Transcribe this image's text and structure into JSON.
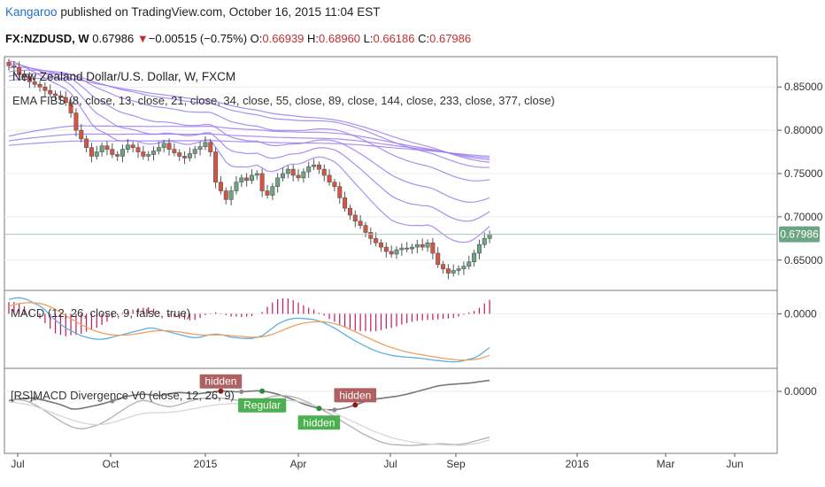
{
  "header": {
    "author": "Kangaroo",
    "published_text": "published on TradingView.com, October 16, 2015 11:04 EST",
    "symbol_label": "FX:NZDUSD, W",
    "last": "0.67986",
    "arrow": "▼",
    "change": "−0.00515 (−0.75%)",
    "open_label": "O:",
    "open": "0.66939",
    "high_label": "H:",
    "high": "0.68960",
    "low_label": "L:",
    "low": "0.66186",
    "close_label": "C:",
    "close": "0.67986"
  },
  "colors": {
    "up": "#6ba583",
    "down": "#d75442",
    "ema": "#9b7ded",
    "macd": "#5bb0e6",
    "signal": "#f0a060",
    "hist_pos": "#c2185b",
    "last_price_bg": "#6ba583",
    "div_label_bg": "#b06060",
    "div_label_bg2": "#4caf50",
    "grid": "#e8ecf0"
  },
  "chart_data": [
    {
      "type": "candlestick",
      "title": "New Zealand Dollar/U.S. Dollar, W, FXCM",
      "indicator_label": "EMA FIBS (8, close, 13, close, 21, close, 34, close, 55, close, 89, close, 144, close, 233, close, 377, close)",
      "x_tick_labels": [
        "Jul",
        "Oct",
        "2015",
        "Apr",
        "Jul",
        "Sep",
        "2016",
        "Mar",
        "Jun"
      ],
      "y_tick_labels": [
        "0.85000",
        "0.80000",
        "0.75000",
        "0.70000",
        "0.65000"
      ],
      "ylim": [
        0.615,
        0.885
      ],
      "last_price_label": "0.67986",
      "last_price": 0.67986,
      "closes": [
        0.8745,
        0.8725,
        0.865,
        0.862,
        0.856,
        0.853,
        0.85,
        0.846,
        0.842,
        0.84,
        0.838,
        0.832,
        0.82,
        0.8,
        0.79,
        0.78,
        0.77,
        0.775,
        0.782,
        0.778,
        0.772,
        0.77,
        0.778,
        0.783,
        0.78,
        0.775,
        0.77,
        0.772,
        0.776,
        0.78,
        0.785,
        0.778,
        0.774,
        0.77,
        0.768,
        0.773,
        0.778,
        0.781,
        0.786,
        0.775,
        0.74,
        0.73,
        0.72,
        0.73,
        0.74,
        0.745,
        0.742,
        0.748,
        0.75,
        0.73,
        0.725,
        0.735,
        0.745,
        0.75,
        0.755,
        0.748,
        0.745,
        0.752,
        0.758,
        0.76,
        0.755,
        0.748,
        0.74,
        0.735,
        0.722,
        0.71,
        0.702,
        0.695,
        0.69,
        0.682,
        0.675,
        0.67,
        0.665,
        0.66,
        0.657,
        0.662,
        0.664,
        0.663,
        0.665,
        0.668,
        0.665,
        0.67,
        0.658,
        0.645,
        0.64,
        0.635,
        0.638,
        0.64,
        0.643,
        0.648,
        0.658,
        0.668,
        0.675,
        0.68
      ],
      "ema_lengths": [
        8,
        13,
        21,
        34,
        55,
        89,
        144,
        233,
        377
      ],
      "ema_end_values": [
        0.689,
        0.706,
        0.722,
        0.743,
        0.757,
        0.763,
        0.766,
        0.768,
        0.77
      ]
    },
    {
      "type": "line",
      "title": "MACD (12, 26, close, 9, false, true)",
      "y_tick_labels": [
        "0.0000"
      ],
      "series": [
        {
          "name": "MACD",
          "role": "macd",
          "values": [
            0.0055,
            0.006,
            0.0062,
            0.0058,
            0.005,
            0.004,
            0.003,
            0.0015,
            -0.0005,
            -0.0025,
            -0.004,
            -0.0055,
            -0.0065,
            -0.0075,
            -0.0085,
            -0.009,
            -0.0095,
            -0.0098,
            -0.0098,
            -0.0095,
            -0.009,
            -0.0085,
            -0.008,
            -0.0075,
            -0.007,
            -0.0065,
            -0.006,
            -0.0055,
            -0.0055,
            -0.006,
            -0.0065,
            -0.007,
            -0.0075,
            -0.008,
            -0.0085,
            -0.009,
            -0.0092,
            -0.009,
            -0.0085,
            -0.008,
            -0.0078,
            -0.008,
            -0.0085,
            -0.009,
            -0.0092,
            -0.0094,
            -0.0095,
            -0.0095,
            -0.009,
            -0.0085,
            -0.007,
            -0.0055,
            -0.004,
            -0.003,
            -0.0022,
            -0.0018,
            -0.0017,
            -0.0018,
            -0.002,
            -0.0022,
            -0.0028,
            -0.0035,
            -0.0045,
            -0.0055,
            -0.0067,
            -0.008,
            -0.0092,
            -0.0105,
            -0.0115,
            -0.0125,
            -0.0135,
            -0.0143,
            -0.015,
            -0.0155,
            -0.016,
            -0.0163,
            -0.0165,
            -0.0167,
            -0.0168,
            -0.017,
            -0.0172,
            -0.0175,
            -0.0178,
            -0.018,
            -0.0182,
            -0.0184,
            -0.0185,
            -0.0184,
            -0.018,
            -0.0175,
            -0.017,
            -0.016,
            -0.0145,
            -0.013
          ]
        },
        {
          "name": "Signal",
          "role": "signal",
          "values": [
            0.003,
            0.0035,
            0.004,
            0.0042,
            0.0043,
            0.0042,
            0.004,
            0.0035,
            0.0027,
            0.0017,
            0.0005,
            -0.0007,
            -0.0019,
            -0.003,
            -0.0042,
            -0.0052,
            -0.0061,
            -0.0068,
            -0.0074,
            -0.0078,
            -0.0081,
            -0.0082,
            -0.0082,
            -0.0081,
            -0.0079,
            -0.0076,
            -0.0073,
            -0.0069,
            -0.0066,
            -0.0065,
            -0.0065,
            -0.0066,
            -0.0068,
            -0.007,
            -0.0073,
            -0.0076,
            -0.0079,
            -0.0081,
            -0.0082,
            -0.0081,
            -0.0081,
            -0.0081,
            -0.0082,
            -0.0084,
            -0.0086,
            -0.0087,
            -0.0089,
            -0.009,
            -0.009,
            -0.0089,
            -0.0085,
            -0.0079,
            -0.0071,
            -0.0063,
            -0.0055,
            -0.0047,
            -0.0041,
            -0.0036,
            -0.0033,
            -0.0031,
            -0.003,
            -0.0031,
            -0.0034,
            -0.0038,
            -0.0044,
            -0.0051,
            -0.006,
            -0.0069,
            -0.0078,
            -0.0088,
            -0.0097,
            -0.0106,
            -0.0115,
            -0.0123,
            -0.013,
            -0.0136,
            -0.0142,
            -0.0147,
            -0.0151,
            -0.0155,
            -0.0158,
            -0.0162,
            -0.0165,
            -0.0168,
            -0.0171,
            -0.0174,
            -0.0176,
            -0.0178,
            -0.0178,
            -0.0178,
            -0.0176,
            -0.0173,
            -0.0167,
            -0.016
          ]
        },
        {
          "name": "Histogram",
          "role": "histogram",
          "values": [
            0.0025,
            0.0025,
            0.0022,
            0.0016,
            0.0007,
            -0.0002,
            -0.001,
            -0.002,
            -0.0032,
            -0.0042,
            -0.0045,
            -0.0048,
            -0.0046,
            -0.0045,
            -0.0043,
            -0.0038,
            -0.0034,
            -0.003,
            -0.0024,
            -0.0017,
            -0.0009,
            -0.0003,
            0.0002,
            0.0006,
            0.0009,
            0.0011,
            0.0013,
            0.0014,
            0.0011,
            0.0005,
            0,
            -0.0004,
            -0.0007,
            -0.001,
            -0.0012,
            -0.0014,
            -0.0013,
            -0.0009,
            -0.0003,
            0.0001,
            0.0003,
            0.0001,
            -0.0003,
            -0.0006,
            -0.0006,
            -0.0007,
            -0.0006,
            -0.0005,
            0,
            0.0004,
            0.0015,
            0.0024,
            0.0031,
            0.0033,
            0.0033,
            0.0029,
            0.0024,
            0.0018,
            0.0013,
            0.0009,
            0.0002,
            -0.0004,
            -0.0011,
            -0.0017,
            -0.0023,
            -0.0029,
            -0.0032,
            -0.0036,
            -0.0037,
            -0.0037,
            -0.0038,
            -0.0037,
            -0.0035,
            -0.0032,
            -0.003,
            -0.0027,
            -0.0023,
            -0.002,
            -0.0017,
            -0.0015,
            -0.0014,
            -0.0013,
            -0.0013,
            -0.0012,
            -0.0011,
            -0.001,
            -0.0009,
            -0.0006,
            -0.0002,
            0.0003,
            0.0006,
            0.0013,
            0.0022,
            0.003
          ]
        }
      ]
    },
    {
      "type": "line",
      "title": "[RS]MACD Divergence V0 (close, 12, 26, 9)",
      "y_tick_labels": [
        "0.0000"
      ],
      "series": [
        {
          "name": "Dark",
          "role": "dark",
          "values": [
            0.3,
            0.32,
            0.34,
            0.36,
            0.37,
            0.36,
            0.33,
            0.3,
            0.26,
            0.22,
            0.18,
            0.12,
            0.06,
            0.05,
            0.07,
            0.1,
            0.13,
            0.16,
            0.2,
            0.24,
            0.28,
            0.33,
            0.38,
            0.42,
            0.45,
            0.47,
            0.48,
            0.47,
            0.45,
            0.44,
            0.46,
            0.49,
            0.52,
            0.53,
            0.52,
            0.5,
            0.49,
            0.5,
            0.52,
            0.54,
            0.56,
            0.57,
            0.57,
            0.56,
            0.55,
            0.55,
            0.56,
            0.57,
            0.58,
            0.57,
            0.55,
            0.52,
            0.48,
            0.43,
            0.38,
            0.32,
            0.26,
            0.2,
            0.15,
            0.11,
            0.07,
            0.04,
            0.03,
            0.03,
            0.05,
            0.08,
            0.12,
            0.17,
            0.22,
            0.27,
            0.31,
            0.34,
            0.36,
            0.38,
            0.4,
            0.42,
            0.45,
            0.48,
            0.52,
            0.56,
            0.6,
            0.64,
            0.68,
            0.72,
            0.74,
            0.76,
            0.77,
            0.78,
            0.79,
            0.8,
            0.82,
            0.84,
            0.86,
            0.88
          ]
        },
        {
          "name": "Mid",
          "role": "mid",
          "values": [
            0.32,
            0.33,
            0.32,
            0.3,
            0.25,
            0.18,
            0.1,
            0,
            -0.1,
            -0.2,
            -0.3,
            -0.38,
            -0.45,
            -0.5,
            -0.52,
            -0.5,
            -0.46,
            -0.42,
            -0.35,
            -0.27,
            -0.18,
            -0.08,
            0.02,
            0.12,
            0.2,
            0.27,
            0.3,
            0.28,
            0.23,
            0.18,
            0.14,
            0.12,
            0.14,
            0.18,
            0.23,
            0.28,
            0.32,
            0.35,
            0.37,
            0.38,
            0.38,
            0.37,
            0.35,
            0.33,
            0.31,
            0.29,
            0.28,
            0.28,
            0.3,
            0.33,
            0.38,
            0.42,
            0.44,
            0.44,
            0.43,
            0.4,
            0.36,
            0.3,
            0.24,
            0.16,
            0.08,
            0,
            -0.08,
            -0.17,
            -0.26,
            -0.35,
            -0.44,
            -0.53,
            -0.62,
            -0.7,
            -0.77,
            -0.84,
            -0.9,
            -0.94,
            -0.97,
            -0.98,
            -0.99,
            -1,
            -1,
            -0.99,
            -0.98,
            -0.97,
            -0.96,
            -0.95,
            -0.95,
            -0.96,
            -0.97,
            -0.97,
            -0.95,
            -0.92,
            -0.88,
            -0.84,
            -0.8,
            -0.76
          ]
        },
        {
          "name": "Light",
          "role": "light",
          "values": [
            0.25,
            0.24,
            0.22,
            0.2,
            0.17,
            0.13,
            0.08,
            0.03,
            -0.03,
            -0.09,
            -0.15,
            -0.2,
            -0.25,
            -0.3,
            -0.34,
            -0.37,
            -0.39,
            -0.4,
            -0.39,
            -0.37,
            -0.34,
            -0.3,
            -0.25,
            -0.2,
            -0.15,
            -0.11,
            -0.08,
            -0.06,
            -0.05,
            -0.05,
            -0.05,
            -0.04,
            -0.03,
            -0.01,
            0.01,
            0.04,
            0.07,
            0.1,
            0.13,
            0.15,
            0.17,
            0.19,
            0.2,
            0.21,
            0.21,
            0.21,
            0.21,
            0.21,
            0.22,
            0.23,
            0.25,
            0.27,
            0.29,
            0.3,
            0.3,
            0.29,
            0.27,
            0.24,
            0.2,
            0.16,
            0.11,
            0.06,
            0,
            -0.06,
            -0.13,
            -0.2,
            -0.27,
            -0.34,
            -0.41,
            -0.48,
            -0.55,
            -0.61,
            -0.67,
            -0.72,
            -0.77,
            -0.81,
            -0.84,
            -0.87,
            -0.9,
            -0.92,
            -0.94,
            -0.95,
            -0.96,
            -0.97,
            -0.98,
            -0.99,
            -0.99,
            -1,
            -0.99,
            -0.97,
            -0.95,
            -0.92,
            -0.88,
            -0.84
          ]
        }
      ],
      "divergence_labels": [
        {
          "text": "hidden",
          "index": 41,
          "style": "bearish"
        },
        {
          "text": "hidden",
          "index": 67,
          "style": "bearish"
        },
        {
          "text": "Regular",
          "index": 49,
          "style": "bullish"
        },
        {
          "text": "hidden",
          "index": 60,
          "style": "bullish"
        }
      ]
    }
  ]
}
